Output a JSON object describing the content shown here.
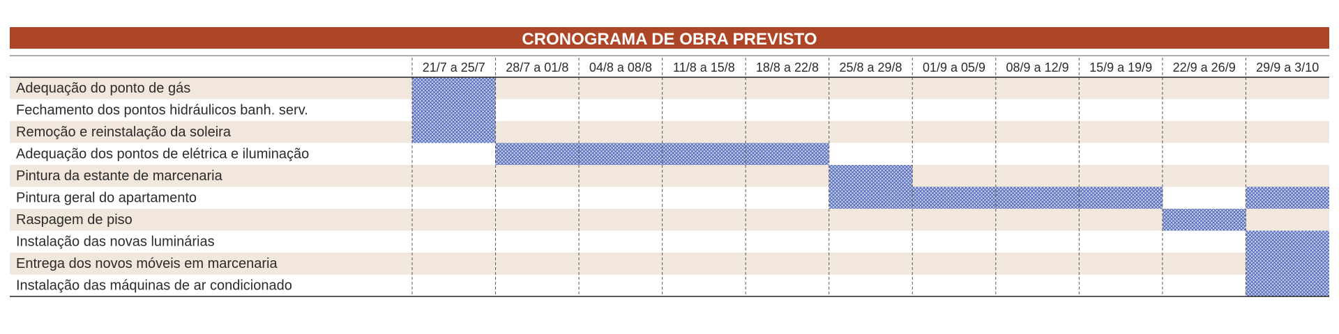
{
  "chart_data": {
    "type": "gantt",
    "title": "CRONOGRAMA DE OBRA PREVISTO",
    "periods": [
      "21/7 a 25/7",
      "28/7 a 01/8",
      "04/8 a 08/8",
      "11/8 a 15/8",
      "18/8 a 22/8",
      "25/8 a 29/8",
      "01/9 a 05/9",
      "08/9 a 12/9",
      "15/9 a 19/9",
      "22/9 a 26/9",
      "29/9 a 3/10"
    ],
    "tasks": [
      {
        "label": "Adequação do ponto de gás",
        "weeks": [
          0
        ]
      },
      {
        "label": "Fechamento dos pontos hidráulicos banh. serv.",
        "weeks": [
          0
        ]
      },
      {
        "label": "Remoção e reinstalação da soleira",
        "weeks": [
          0
        ]
      },
      {
        "label": "Adequação dos pontos de elétrica e iluminação",
        "weeks": [
          1,
          2,
          3,
          4
        ]
      },
      {
        "label": "Pintura da estante de marcenaria",
        "weeks": [
          5
        ]
      },
      {
        "label": "Pintura geral do apartamento",
        "weeks": [
          5,
          6,
          7,
          8,
          10
        ]
      },
      {
        "label": "Raspagem de piso",
        "weeks": [
          9
        ]
      },
      {
        "label": "Instalação das novas luminárias",
        "weeks": [
          10
        ]
      },
      {
        "label": "Entrega dos novos móveis em marcenaria",
        "weeks": [
          10
        ]
      },
      {
        "label": "Instalação das máquinas de ar condicionado",
        "weeks": [
          10
        ]
      }
    ]
  },
  "colors": {
    "title_bar": "#ad4626",
    "title_text": "#ffffff",
    "row_shade": "#f1e7dd",
    "hatch": "#3f5bb5",
    "hatch_bg": "#c5cde9",
    "grid": "#555555",
    "text": "#2b2b2b"
  }
}
